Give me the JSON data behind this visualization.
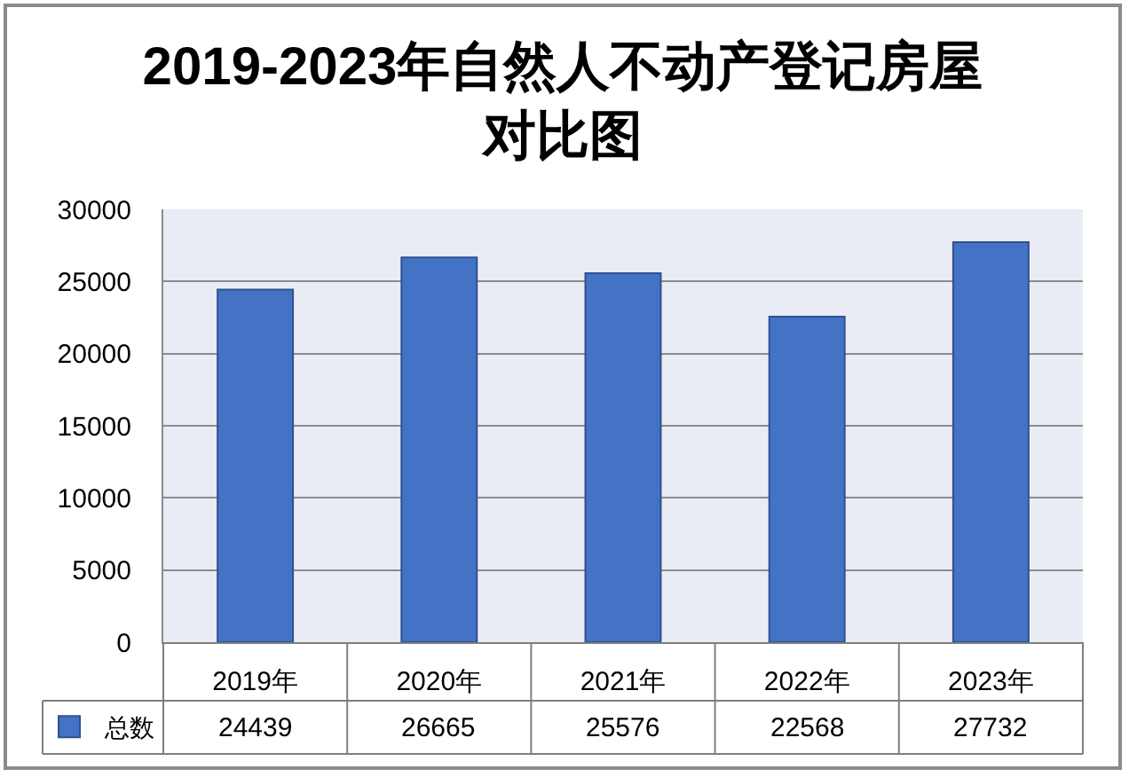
{
  "chart_data": {
    "type": "bar",
    "title": "2019-2023年自然人不动产登记房屋对比图",
    "categories": [
      "2019年",
      "2020年",
      "2021年",
      "2022年",
      "2023年"
    ],
    "series": [
      {
        "name": "总数",
        "color": "#4472c4",
        "values": [
          24439,
          26665,
          25576,
          22568,
          27732
        ]
      }
    ],
    "ylim": [
      0,
      30000
    ],
    "yticks": [
      0,
      5000,
      10000,
      15000,
      20000,
      25000,
      30000
    ],
    "grid": "y",
    "legend": "bottom left",
    "data_labels": true
  }
}
